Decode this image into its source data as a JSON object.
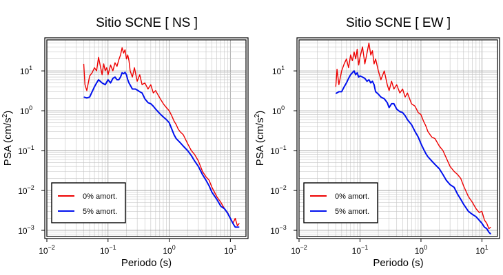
{
  "chart_data": [
    {
      "type": "line",
      "title": "Sitio SCNE [ NS ]",
      "xlabel": "Periodo (s)",
      "ylabel_main": "PSA (cm/s",
      "ylabel_sup": "2",
      "ylabel_close": ")",
      "x_scale": "log",
      "y_scale": "log",
      "xlim": [
        0.01,
        18
      ],
      "ylim": [
        0.0007,
        60
      ],
      "x_ticks": [
        {
          "value": 0.01,
          "base": "10",
          "exp": "−2"
        },
        {
          "value": 0.1,
          "base": "10",
          "exp": "−1"
        },
        {
          "value": 1,
          "base": "10",
          "exp": "0"
        },
        {
          "value": 10,
          "base": "10",
          "exp": "1"
        }
      ],
      "y_ticks": [
        {
          "value": 0.001,
          "base": "10",
          "exp": "−3"
        },
        {
          "value": 0.01,
          "base": "10",
          "exp": "−2"
        },
        {
          "value": 0.1,
          "base": "10",
          "exp": "−1"
        },
        {
          "value": 1,
          "base": "10",
          "exp": "0"
        },
        {
          "value": 10,
          "base": "10",
          "exp": "1"
        }
      ],
      "grid": true,
      "legend_position": "bottom-left",
      "series": [
        {
          "name": "0% amort.",
          "color": "#ee0000",
          "x": [
            0.04,
            0.042,
            0.045,
            0.05,
            0.055,
            0.06,
            0.065,
            0.07,
            0.075,
            0.08,
            0.085,
            0.09,
            0.095,
            0.1,
            0.11,
            0.12,
            0.13,
            0.14,
            0.15,
            0.16,
            0.17,
            0.18,
            0.19,
            0.2,
            0.21,
            0.22,
            0.23,
            0.25,
            0.27,
            0.3,
            0.33,
            0.36,
            0.4,
            0.45,
            0.5,
            0.55,
            0.6,
            0.7,
            0.8,
            0.9,
            1.0,
            1.1,
            1.2,
            1.3,
            1.4,
            1.5,
            1.7,
            2.0,
            2.3,
            2.6,
            3.0,
            3.5,
            4.0,
            4.5,
            5.0,
            6.0,
            7.0,
            8.0,
            9.0,
            10,
            11,
            12,
            13,
            14
          ],
          "y": [
            15,
            4.5,
            3.2,
            7.5,
            9,
            12,
            10,
            22,
            13,
            8,
            15,
            10,
            12,
            8,
            14,
            10,
            16,
            13,
            19,
            25,
            38,
            28,
            34,
            20,
            25,
            18,
            10,
            7,
            12,
            5.5,
            8,
            4.5,
            5,
            3.5,
            4.5,
            2.8,
            3.2,
            2.1,
            1.5,
            1.2,
            1.0,
            0.75,
            0.55,
            0.45,
            0.35,
            0.3,
            0.25,
            0.15,
            0.1,
            0.08,
            0.055,
            0.03,
            0.022,
            0.018,
            0.012,
            0.007,
            0.005,
            0.0035,
            0.0028,
            0.002,
            0.0015,
            0.002,
            0.0013,
            0.0015
          ]
        },
        {
          "name": "5% amort.",
          "color": "#0010ee",
          "x": [
            0.04,
            0.045,
            0.05,
            0.055,
            0.06,
            0.065,
            0.07,
            0.08,
            0.09,
            0.1,
            0.11,
            0.12,
            0.13,
            0.14,
            0.15,
            0.16,
            0.17,
            0.18,
            0.19,
            0.2,
            0.21,
            0.22,
            0.25,
            0.28,
            0.3,
            0.33,
            0.36,
            0.4,
            0.45,
            0.5,
            0.55,
            0.6,
            0.7,
            0.8,
            0.9,
            1.0,
            1.1,
            1.2,
            1.3,
            1.5,
            1.7,
            2.0,
            2.3,
            2.6,
            3.0,
            3.5,
            4.0,
            4.5,
            5.0,
            6.0,
            7.0,
            8.0,
            9.0,
            10,
            11,
            12,
            13,
            14
          ],
          "y": [
            2.2,
            2.1,
            2.2,
            3.0,
            4.0,
            5.0,
            6.0,
            5.0,
            4.5,
            6.0,
            5.0,
            6.5,
            7.0,
            6.0,
            6.0,
            7.0,
            9.0,
            8.5,
            9.2,
            8.0,
            6.0,
            5.0,
            3.5,
            3.5,
            3.3,
            3.0,
            2.8,
            2.0,
            1.6,
            1.5,
            1.3,
            1.1,
            0.85,
            0.7,
            0.6,
            0.5,
            0.35,
            0.25,
            0.2,
            0.16,
            0.13,
            0.1,
            0.075,
            0.055,
            0.04,
            0.025,
            0.018,
            0.013,
            0.009,
            0.006,
            0.004,
            0.0035,
            0.0027,
            0.002,
            0.0015,
            0.0012,
            0.0012,
            0.0012
          ]
        }
      ]
    },
    {
      "type": "line",
      "title": "Sitio SCNE [ EW ]",
      "xlabel": "Periodo (s)",
      "ylabel_main": "PSA (cm/s",
      "ylabel_sup": "2",
      "ylabel_close": ")",
      "x_scale": "log",
      "y_scale": "log",
      "xlim": [
        0.01,
        18
      ],
      "ylim": [
        0.0007,
        60
      ],
      "x_ticks": [
        {
          "value": 0.01,
          "base": "10",
          "exp": "−2"
        },
        {
          "value": 0.1,
          "base": "10",
          "exp": "−1"
        },
        {
          "value": 1,
          "base": "10",
          "exp": "0"
        },
        {
          "value": 10,
          "base": "10",
          "exp": "1"
        }
      ],
      "y_ticks": [
        {
          "value": 0.001,
          "base": "10",
          "exp": "−3"
        },
        {
          "value": 0.01,
          "base": "10",
          "exp": "−2"
        },
        {
          "value": 0.1,
          "base": "10",
          "exp": "−1"
        },
        {
          "value": 1,
          "base": "10",
          "exp": "0"
        },
        {
          "value": 10,
          "base": "10",
          "exp": "1"
        }
      ],
      "grid": true,
      "legend_position": "bottom-left",
      "series": [
        {
          "name": "0% amort.",
          "color": "#ee0000",
          "x": [
            0.04,
            0.042,
            0.045,
            0.05,
            0.055,
            0.06,
            0.065,
            0.07,
            0.075,
            0.08,
            0.085,
            0.09,
            0.095,
            0.1,
            0.11,
            0.12,
            0.13,
            0.14,
            0.15,
            0.16,
            0.17,
            0.18,
            0.2,
            0.22,
            0.25,
            0.28,
            0.3,
            0.33,
            0.36,
            0.4,
            0.45,
            0.5,
            0.55,
            0.6,
            0.7,
            0.8,
            0.9,
            1.0,
            1.1,
            1.2,
            1.3,
            1.5,
            1.7,
            2.0,
            2.3,
            2.6,
            3.0,
            3.5,
            4.0,
            4.5,
            5.0,
            6.0,
            7.0,
            8.0,
            9.0,
            10,
            11,
            12,
            13,
            14
          ],
          "y": [
            4,
            11,
            4.5,
            10,
            15,
            20,
            12,
            25,
            18,
            30,
            20,
            35,
            14,
            22,
            40,
            15,
            28,
            50,
            25,
            32,
            15,
            20,
            10,
            6,
            10,
            4.5,
            3.2,
            5.5,
            3.5,
            4.5,
            2.8,
            3.5,
            2.2,
            2.8,
            1.5,
            1.3,
            0.9,
            0.8,
            0.55,
            0.42,
            0.3,
            0.22,
            0.2,
            0.13,
            0.1,
            0.065,
            0.04,
            0.03,
            0.025,
            0.02,
            0.013,
            0.007,
            0.005,
            0.0035,
            0.0028,
            0.003,
            0.0018,
            0.0015,
            0.0011,
            0.0012
          ]
        },
        {
          "name": "5% amort.",
          "color": "#0010ee",
          "x": [
            0.04,
            0.045,
            0.05,
            0.055,
            0.06,
            0.065,
            0.07,
            0.075,
            0.08,
            0.085,
            0.09,
            0.095,
            0.1,
            0.11,
            0.12,
            0.13,
            0.14,
            0.15,
            0.16,
            0.17,
            0.18,
            0.2,
            0.22,
            0.25,
            0.28,
            0.3,
            0.33,
            0.36,
            0.4,
            0.45,
            0.5,
            0.55,
            0.6,
            0.7,
            0.8,
            0.9,
            1.0,
            1.1,
            1.2,
            1.3,
            1.5,
            1.7,
            2.0,
            2.3,
            2.6,
            3.0,
            3.5,
            4.0,
            4.5,
            5.0,
            6.0,
            7.0,
            8.0,
            9.0,
            10,
            11,
            12,
            13,
            14
          ],
          "y": [
            2.7,
            3.0,
            3.0,
            4.0,
            5.0,
            6.5,
            8.0,
            9.0,
            10.0,
            8.0,
            9.0,
            7.0,
            7.5,
            7.0,
            6.5,
            5.5,
            6.0,
            5.0,
            5.5,
            4.5,
            3.0,
            2.6,
            2.2,
            2.0,
            1.6,
            1.2,
            1.5,
            1.5,
            1.1,
            0.95,
            0.9,
            0.75,
            0.6,
            0.45,
            0.3,
            0.22,
            0.15,
            0.11,
            0.085,
            0.07,
            0.055,
            0.045,
            0.035,
            0.025,
            0.018,
            0.014,
            0.012,
            0.008,
            0.006,
            0.0045,
            0.003,
            0.0025,
            0.0022,
            0.0018,
            0.0015,
            0.0012,
            0.0011,
            0.0009,
            0.0008
          ]
        }
      ]
    }
  ]
}
